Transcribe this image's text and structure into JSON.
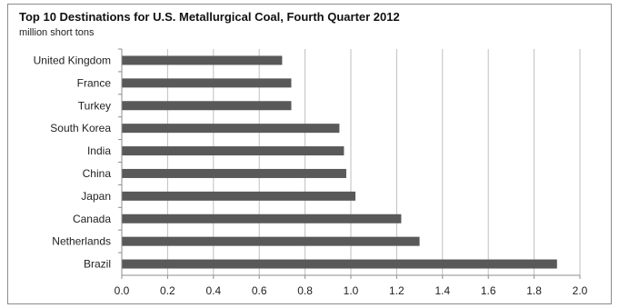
{
  "chart_data": {
    "type": "bar",
    "orientation": "horizontal",
    "title": "Top 10 Destinations for U.S. Metallurgical Coal, Fourth Quarter 2012",
    "subtitle": "million short tons",
    "categories": [
      "United Kingdom",
      "France",
      "Turkey",
      "South Korea",
      "India",
      "China",
      "Japan",
      "Canada",
      "Netherlands",
      "Brazil"
    ],
    "values": [
      0.7,
      0.74,
      0.74,
      0.95,
      0.97,
      0.98,
      1.02,
      1.22,
      1.3,
      1.9
    ],
    "xlim": [
      0.0,
      2.0
    ],
    "xticks": [
      "0.0",
      "0.2",
      "0.4",
      "0.6",
      "0.8",
      "1.0",
      "1.2",
      "1.4",
      "1.6",
      "1.8",
      "2.0"
    ],
    "grid": "vertical",
    "bar_color": "#595959",
    "grid_color": "#bfbfbf",
    "legend": "none"
  }
}
